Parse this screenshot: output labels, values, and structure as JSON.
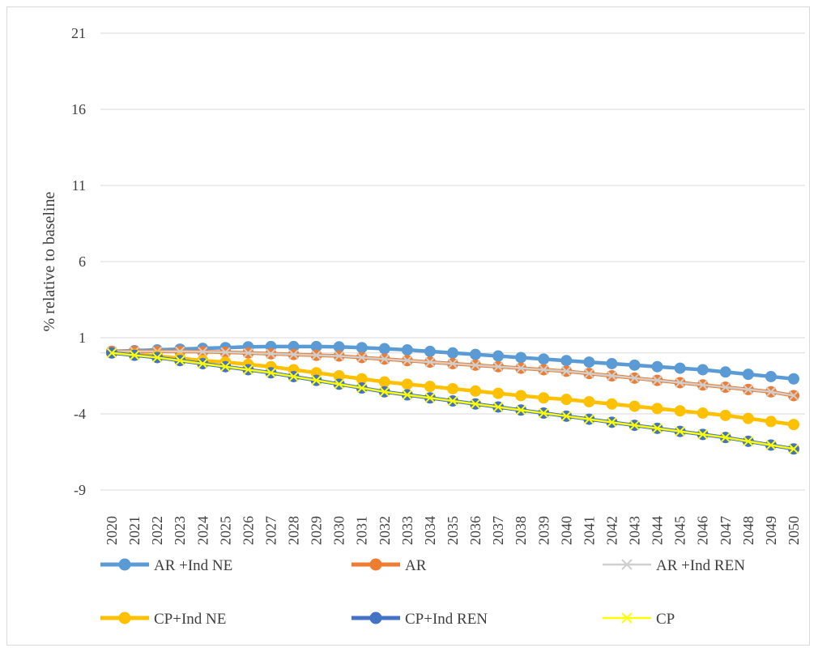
{
  "chart_data": {
    "type": "line",
    "title": "",
    "xlabel": "",
    "ylabel": "% relative to baseline",
    "ylim": [
      -9,
      21
    ],
    "yticks": [
      -9,
      -4,
      1,
      6,
      11,
      16,
      21
    ],
    "grid": "horizontal",
    "legend_position": "bottom",
    "x": [
      "2020",
      "2021",
      "2022",
      "2023",
      "2024",
      "2025",
      "2026",
      "2027",
      "2028",
      "2029",
      "2030",
      "2031",
      "2032",
      "2033",
      "2034",
      "2035",
      "2036",
      "2037",
      "2038",
      "2039",
      "2040",
      "2041",
      "2042",
      "2043",
      "2044",
      "2045",
      "2046",
      "2047",
      "2048",
      "2049",
      "2050"
    ],
    "series": [
      {
        "name": "AR +Ind NE",
        "color": "#5b9bd5",
        "marker": "circle",
        "values": [
          0.1,
          0.15,
          0.2,
          0.25,
          0.3,
          0.35,
          0.4,
          0.42,
          0.42,
          0.42,
          0.4,
          0.35,
          0.28,
          0.2,
          0.1,
          0.0,
          -0.1,
          -0.2,
          -0.3,
          -0.4,
          -0.5,
          -0.6,
          -0.7,
          -0.8,
          -0.9,
          -1.0,
          -1.1,
          -1.25,
          -1.4,
          -1.55,
          -1.7
        ]
      },
      {
        "name": "AR",
        "color": "#ed7d31",
        "marker": "circle",
        "values": [
          0.1,
          0.1,
          0.1,
          0.1,
          0.08,
          0.05,
          0.0,
          -0.05,
          -0.1,
          -0.15,
          -0.2,
          -0.3,
          -0.4,
          -0.5,
          -0.6,
          -0.7,
          -0.8,
          -0.9,
          -1.0,
          -1.1,
          -1.2,
          -1.35,
          -1.5,
          -1.65,
          -1.8,
          -1.95,
          -2.1,
          -2.25,
          -2.4,
          -2.55,
          -2.8
        ]
      },
      {
        "name": "AR +Ind REN",
        "color": "#cfcfcf",
        "marker": "x",
        "values": [
          0.1,
          0.1,
          0.1,
          0.1,
          0.08,
          0.05,
          0.0,
          -0.05,
          -0.1,
          -0.15,
          -0.2,
          -0.3,
          -0.4,
          -0.5,
          -0.6,
          -0.7,
          -0.8,
          -0.9,
          -1.0,
          -1.1,
          -1.2,
          -1.35,
          -1.5,
          -1.65,
          -1.8,
          -1.95,
          -2.1,
          -2.25,
          -2.4,
          -2.55,
          -2.8
        ]
      },
      {
        "name": "CP+Ind NE",
        "color": "#ffc000",
        "marker": "circle",
        "values": [
          0.0,
          -0.1,
          -0.2,
          -0.35,
          -0.5,
          -0.6,
          -0.75,
          -0.9,
          -1.1,
          -1.3,
          -1.5,
          -1.7,
          -1.9,
          -2.05,
          -2.2,
          -2.35,
          -2.5,
          -2.65,
          -2.8,
          -2.95,
          -3.05,
          -3.2,
          -3.35,
          -3.5,
          -3.65,
          -3.8,
          -3.95,
          -4.1,
          -4.3,
          -4.5,
          -4.7
        ]
      },
      {
        "name": "CP+Ind REN",
        "color": "#4472c4",
        "marker": "circle",
        "values": [
          0.0,
          -0.15,
          -0.3,
          -0.5,
          -0.7,
          -0.9,
          -1.1,
          -1.3,
          -1.55,
          -1.8,
          -2.05,
          -2.3,
          -2.55,
          -2.75,
          -2.95,
          -3.15,
          -3.35,
          -3.55,
          -3.75,
          -3.95,
          -4.15,
          -4.35,
          -4.55,
          -4.75,
          -4.95,
          -5.15,
          -5.35,
          -5.55,
          -5.8,
          -6.05,
          -6.3
        ]
      },
      {
        "name": "CP",
        "color": "#ffff00",
        "marker": "x",
        "values": [
          0.0,
          -0.15,
          -0.3,
          -0.5,
          -0.7,
          -0.9,
          -1.1,
          -1.3,
          -1.55,
          -1.8,
          -2.05,
          -2.3,
          -2.55,
          -2.75,
          -2.95,
          -3.15,
          -3.35,
          -3.55,
          -3.75,
          -3.95,
          -4.15,
          -4.35,
          -4.55,
          -4.75,
          -4.95,
          -5.15,
          -5.35,
          -5.55,
          -5.8,
          -6.05,
          -6.3
        ]
      }
    ]
  }
}
